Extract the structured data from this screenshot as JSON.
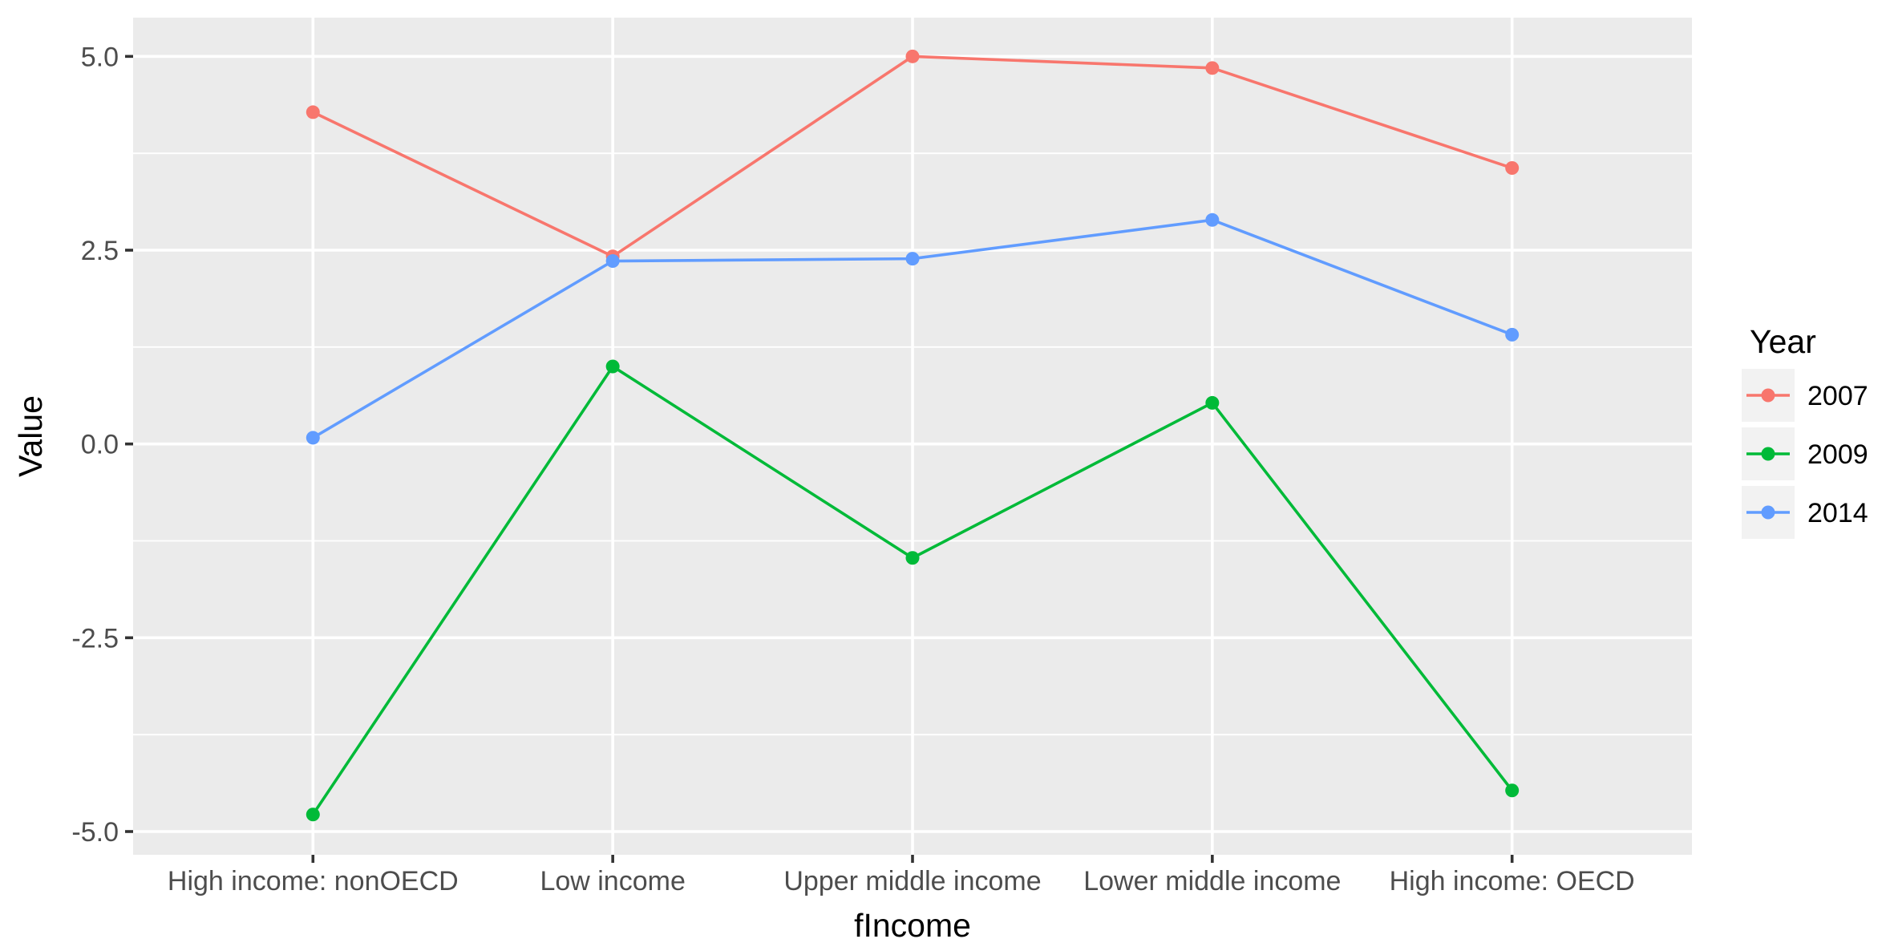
{
  "chart_data": {
    "type": "line",
    "categories": [
      "High income: nonOECD",
      "Low income",
      "Upper middle income",
      "Lower middle income",
      "High income: OECD"
    ],
    "series": [
      {
        "name": "2007",
        "color": "#F8766D",
        "values": [
          4.28,
          2.42,
          5.0,
          4.85,
          3.56
        ]
      },
      {
        "name": "2009",
        "color": "#00BA38",
        "values": [
          -4.78,
          1.0,
          -1.47,
          0.53,
          -4.47
        ]
      },
      {
        "name": "2014",
        "color": "#619CFF",
        "values": [
          0.08,
          2.36,
          2.39,
          2.89,
          1.41
        ]
      }
    ],
    "xlabel": "fIncome",
    "ylabel": "Value",
    "ylim": [
      -5.3,
      5.5
    ],
    "yticks": [
      -5.0,
      -2.5,
      0.0,
      2.5,
      5.0
    ],
    "ytick_labels": [
      "-5.0",
      "-2.5",
      "0.0",
      "2.5",
      "5.0"
    ],
    "legend": {
      "title": "Year",
      "position": "right"
    },
    "grid": true,
    "panel_background": "#EBEBEB"
  }
}
